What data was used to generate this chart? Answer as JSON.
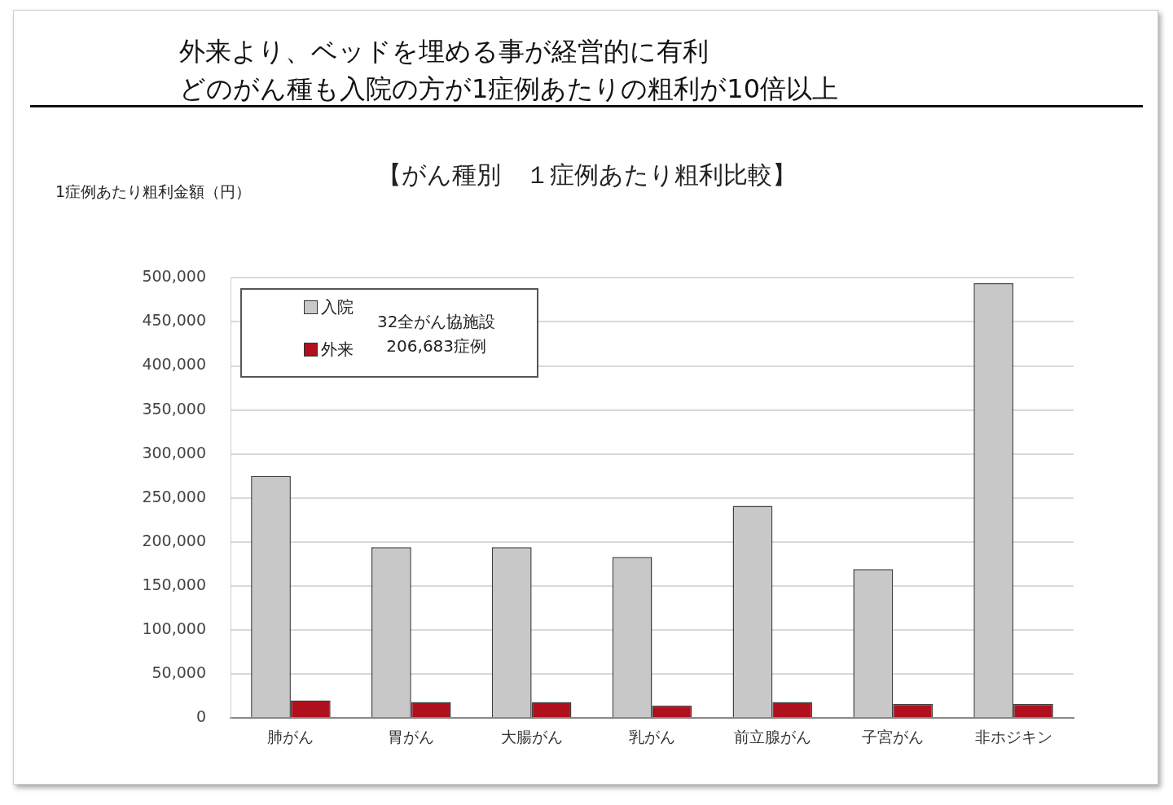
{
  "chart_data": {
    "type": "bar",
    "title": "外来より、ベッドを埋める事が経営的に有利",
    "subtitle": "どのがん種も入院の方が1症例あたりの粗利が10倍以上",
    "ylabel": "1症例あたり粗利金額（円）",
    "categories": [
      "肺がん",
      "胃がん",
      "大腸がん",
      "乳がん",
      "前立腺がん",
      "子宮がん",
      "非ホジキン"
    ],
    "series": [
      {
        "name": "入院",
        "color": "#c8c8c8",
        "values": [
          275000,
          194000,
          194000,
          183000,
          241000,
          169000,
          494000
        ]
      },
      {
        "name": "外来",
        "color": "#b0101e",
        "values": [
          20000,
          18000,
          18000,
          14000,
          18000,
          16000,
          16000
        ]
      }
    ],
    "ylim": [
      0,
      500000
    ],
    "yticks": [
      0,
      {
        "value": 50000,
        "label": "50,000"
      },
      {
        "value": 100000,
        "label": "100,000"
      },
      {
        "value": 150000,
        "label": "150,000"
      },
      {
        "value": 200000,
        "label": "200,000"
      },
      {
        "value": 250000,
        "label": "250,000"
      },
      {
        "value": 300000,
        "label": "300,000"
      },
      {
        "value": 350000,
        "label": "350,000"
      },
      {
        "value": 400000,
        "label": "400,000"
      },
      {
        "value": 450000,
        "label": "450,000"
      },
      {
        "value": 500000,
        "label": "500,000"
      }
    ],
    "grid": "y",
    "legend": "top left",
    "annotations": [
      "【がん種別　１症例あたり粗利比較】",
      "32全がん協施設\n206,683症例"
    ]
  }
}
